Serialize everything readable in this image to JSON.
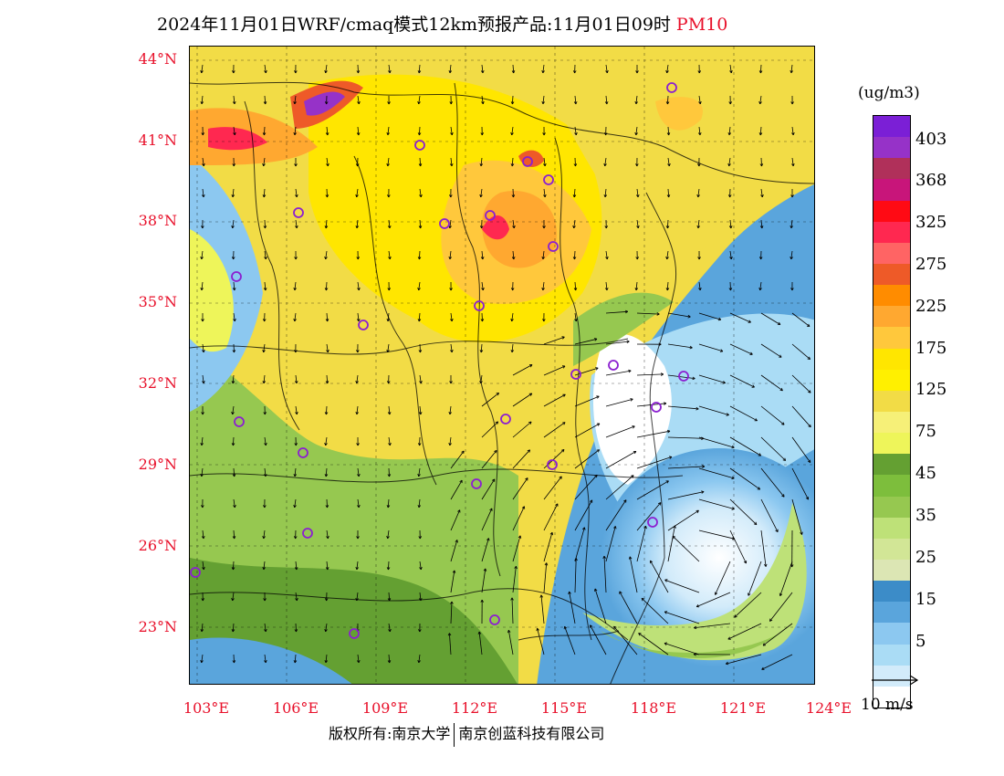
{
  "title": {
    "main": "2024年11月01日WRF/cmaq模式12km预报产品:11月01日09时",
    "pollutant": "PM10"
  },
  "lat_labels": [
    "44°N",
    "41°N",
    "38°N",
    "35°N",
    "32°N",
    "29°N",
    "26°N",
    "23°N"
  ],
  "lon_labels": [
    "103°E",
    "106°E",
    "109°E",
    "112°E",
    "115°E",
    "118°E",
    "121°E",
    "124°E"
  ],
  "colorbar": {
    "unit": "(ug/m3)",
    "labels": [
      "403",
      "368",
      "325",
      "275",
      "225",
      "175",
      "125",
      "75",
      "45",
      "35",
      "25",
      "15",
      "5"
    ],
    "colors": [
      "#7b1fd6",
      "#9632c8",
      "#b0305a",
      "#c8157a",
      "#ff0a14",
      "#ff2850",
      "#ff6464",
      "#ee5a28",
      "#ff8c00",
      "#ffa830",
      "#ffc83c",
      "#ffe600",
      "#fff000",
      "#f2dc46",
      "#f6f078",
      "#eef55a",
      "#64a032",
      "#7dbe3c",
      "#96c850",
      "#bee178",
      "#d2e696",
      "#dce6b4",
      "#3c8cc8",
      "#5aa5dc",
      "#8cc8f0",
      "#aadcf5",
      "#d2ebfa",
      "#ffffff"
    ]
  },
  "wind_scale": {
    "label": "10 m/s"
  },
  "footer": {
    "left": "版权所有:南京大学",
    "right": "南京创蓝科技有限公司"
  }
}
